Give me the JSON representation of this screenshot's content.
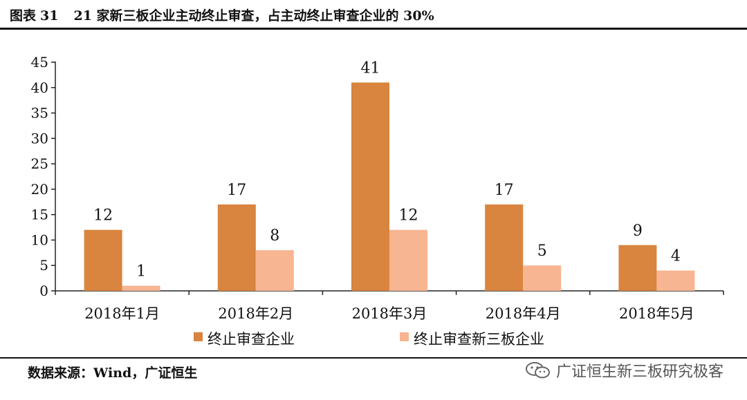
{
  "figure": {
    "label": "图表",
    "number": "31",
    "title": "21 家新三板企业主动终止审查，占主动终止审查企业的 30%"
  },
  "source": "数据来源：Wind，广证恒生",
  "watermark": "广证恒生新三板研究极客",
  "colors": {
    "series1": "#d9843f",
    "series2": "#f7b591",
    "axis": "#222222"
  },
  "chart_data": {
    "type": "bar",
    "categories": [
      "2018年1月",
      "2018年2月",
      "2018年3月",
      "2018年4月",
      "2018年5月"
    ],
    "series": [
      {
        "name": "终止审查企业",
        "values": [
          12,
          17,
          41,
          17,
          9
        ]
      },
      {
        "name": "终止审查新三板企业",
        "values": [
          1,
          8,
          12,
          5,
          4
        ]
      }
    ],
    "ylim": [
      0,
      45
    ],
    "yticks": [
      0,
      5,
      10,
      15,
      20,
      25,
      30,
      35,
      40,
      45
    ],
    "legend": "bottom",
    "grid": false
  }
}
